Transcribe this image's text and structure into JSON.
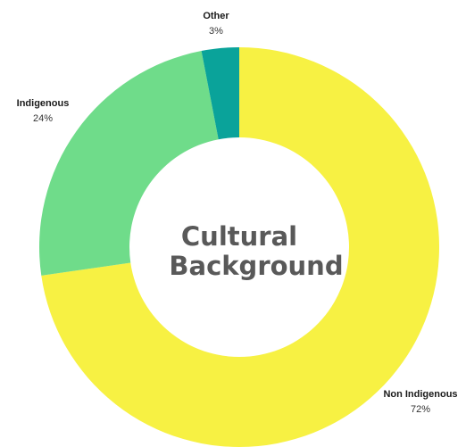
{
  "chart_data": {
    "type": "pie",
    "variant": "donut",
    "title_lines": [
      "Cultural",
      "Background"
    ],
    "slices": [
      {
        "name": "Non Indigenous",
        "value": 72,
        "label": "72%",
        "color": "#f7f143"
      },
      {
        "name": "Indigenous",
        "value": 24,
        "label": "24%",
        "color": "#6fdc8a"
      },
      {
        "name": "Other",
        "value": 3,
        "label": "3%",
        "color": "#0aa39a"
      }
    ],
    "start_angle_deg": 0,
    "direction": "clockwise",
    "legend": "none",
    "labels": "outside"
  }
}
